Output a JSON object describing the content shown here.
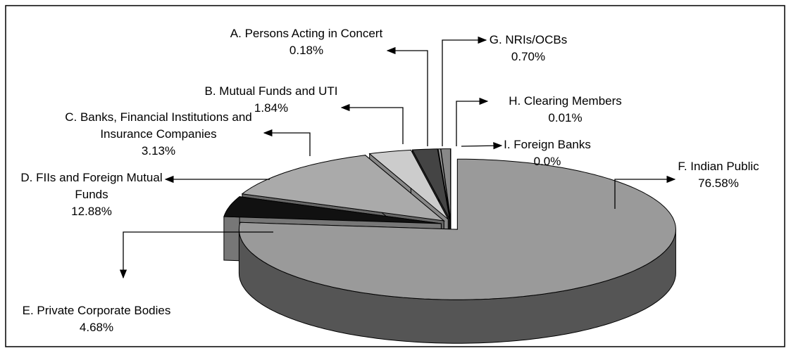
{
  "chart_data": {
    "type": "pie",
    "categories": [
      "F. Indian Public",
      "E. Private Corporate Bodies",
      "D. FIIs and Foreign Mutual Funds",
      "C. Banks, Financial Institutions and Insurance Companies",
      "B. Mutual Funds and UTI",
      "A. Persons Acting in Concert",
      "G. NRIs/OCBs",
      "H. Clearing Members",
      "I. Foreign Banks"
    ],
    "values": [
      76.58,
      4.68,
      12.88,
      3.13,
      1.84,
      0.18,
      0.7,
      0.01,
      0
    ],
    "value_labels": [
      "76.58%",
      "4.68%",
      "12.88%",
      "3.13%",
      "1.84%",
      "0.18%",
      "0.70%",
      "0.01%",
      "0.0%"
    ],
    "colors": [
      "#9a9a9a",
      "#111111",
      "#aaaaaa",
      "#cccccc",
      "#444444",
      "#999999",
      "#888888",
      "#dddddd",
      "#ffffff"
    ],
    "side_colors": [
      "#555555",
      "#777777",
      "#666666",
      "#888888",
      "#333333",
      "#666666",
      "#555555",
      "#999999",
      "#bbbbbb"
    ]
  }
}
